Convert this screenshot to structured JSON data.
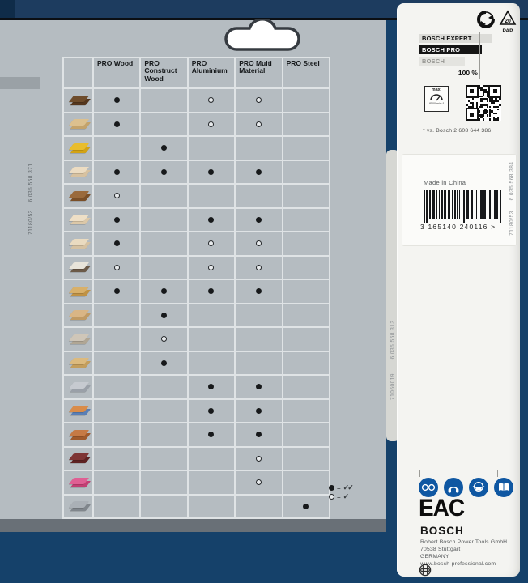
{
  "colors": {
    "background_navy": "#15416a",
    "top_bar_navy": "#1d3c5f",
    "card_gray": "#b5bcc1",
    "panel_white": "#f4f4f1",
    "grid_line": "#dfe3e5",
    "safety_icon_blue": "#0f57a2"
  },
  "table": {
    "columns": [
      "PRO Wood",
      "PRO Construct Wood",
      "PRO Aluminium",
      "PRO Multi Material",
      "PRO Steel"
    ],
    "rows": [
      {
        "material": "hardwood-planks",
        "icon_colors": [
          "#6e4c2b",
          "#55371e"
        ],
        "marks": [
          "filled",
          "",
          "hollow",
          "hollow",
          ""
        ]
      },
      {
        "material": "softwood-boards",
        "icon_colors": [
          "#dcc08e",
          "#c4a36b"
        ],
        "marks": [
          "filled",
          "",
          "hollow",
          "hollow",
          ""
        ]
      },
      {
        "material": "coated-chipboard",
        "icon_colors": [
          "#e9bd2c",
          "#d3a315"
        ],
        "marks": [
          "",
          "filled",
          "",
          "",
          ""
        ]
      },
      {
        "material": "plywood-panel",
        "icon_colors": [
          "#ecdcc2",
          "#d8c2a0"
        ],
        "marks": [
          "filled",
          "filled",
          "filled",
          "filled",
          ""
        ]
      },
      {
        "material": "wood-profile",
        "icon_colors": [
          "#9a6a3c",
          "#7a4f28"
        ],
        "marks": [
          "hollow",
          "",
          "",
          "",
          ""
        ]
      },
      {
        "material": "mdf-panel",
        "icon_colors": [
          "#eedfc6",
          "#dcc8a8"
        ],
        "marks": [
          "filled",
          "",
          "filled",
          "filled",
          ""
        ]
      },
      {
        "material": "laminate-panel",
        "icon_colors": [
          "#eadbc0",
          "#d6c2a2"
        ],
        "marks": [
          "filled",
          "",
          "hollow",
          "hollow",
          ""
        ]
      },
      {
        "material": "coated-board",
        "icon_colors": [
          "#e8e4da",
          "#6b5a48"
        ],
        "marks": [
          "hollow",
          "",
          "hollow",
          "hollow",
          ""
        ]
      },
      {
        "material": "osb-board",
        "icon_colors": [
          "#d8b06a",
          "#c09244"
        ],
        "marks": [
          "filled",
          "filled",
          "filled",
          "filled",
          ""
        ]
      },
      {
        "material": "construction-timber",
        "icon_colors": [
          "#d9b585",
          "#c09a64"
        ],
        "marks": [
          "",
          "filled",
          "",
          "",
          ""
        ]
      },
      {
        "material": "nailed-timber",
        "icon_colors": [
          "#cfc6b8",
          "#b0a694"
        ],
        "marks": [
          "",
          "hollow",
          "",
          "",
          ""
        ]
      },
      {
        "material": "nailed-board",
        "icon_colors": [
          "#dcba7e",
          "#c49e5c"
        ],
        "marks": [
          "",
          "filled",
          "",
          "",
          ""
        ]
      },
      {
        "material": "aluminium-profile",
        "icon_colors": [
          "#c6cad0",
          "#9aa0a8"
        ],
        "marks": [
          "",
          "",
          "filled",
          "filled",
          ""
        ]
      },
      {
        "material": "mixed-pipes",
        "icon_colors": [
          "#d98c4a",
          "#5a7fb5"
        ],
        "marks": [
          "",
          "",
          "filled",
          "filled",
          ""
        ]
      },
      {
        "material": "copper-profiles",
        "icon_colors": [
          "#c67a45",
          "#a05a2c"
        ],
        "marks": [
          "",
          "",
          "filled",
          "filled",
          ""
        ]
      },
      {
        "material": "hpl-board",
        "icon_colors": [
          "#7e3434",
          "#5e2222"
        ],
        "marks": [
          "",
          "",
          "",
          "hollow",
          ""
        ]
      },
      {
        "material": "acrylic-sheet",
        "icon_colors": [
          "#df5f93",
          "#c23f73"
        ],
        "marks": [
          "",
          "",
          "",
          "hollow",
          ""
        ]
      },
      {
        "material": "steel-profile",
        "icon_colors": [
          "#aab0b6",
          "#80868c"
        ],
        "marks": [
          "",
          "",
          "",
          "",
          "filled"
        ]
      }
    ]
  },
  "legend": {
    "items": [
      {
        "mark": "filled",
        "label": "=",
        "meaning": "✓✓"
      },
      {
        "mark": "hollow",
        "label": "=",
        "meaning": "✓"
      }
    ]
  },
  "left_edge_codes": [
    "6 035 568 371",
    "71180/53"
  ],
  "spine_codes": [
    "6 035 568 313",
    "71060019"
  ],
  "right_panel": {
    "recycling": {
      "green_dot_icon": "recycle-arrows-icon",
      "triangle_number": "20",
      "material_code": "PAP"
    },
    "brand_comparison": {
      "bars": [
        {
          "label": "BOSCH EXPERT"
        },
        {
          "label": "BOSCH PRO"
        },
        {
          "label": "BOSCH"
        }
      ],
      "marker_label": "100 %"
    },
    "speed_box": {
      "title": "max.",
      "value": "8500 min⁻¹"
    },
    "footnote": "* vs. Bosch 2 608 644 386",
    "made_in": "Made in China",
    "barcode": {
      "text": "3 165140 240116 >"
    },
    "edge_codes": [
      "6 035 568 384",
      "71180/53"
    ],
    "safety_icons": [
      "eye-protection-icon",
      "ear-protection-icon",
      "dust-mask-icon",
      "read-manual-icon"
    ],
    "eac_label": "EAC",
    "brand": "BOSCH",
    "address_lines": [
      "Robert Bosch Power Tools GmbH",
      "70538 Stuttgart",
      "GERMANY",
      "www.bosch-professional.com"
    ]
  }
}
